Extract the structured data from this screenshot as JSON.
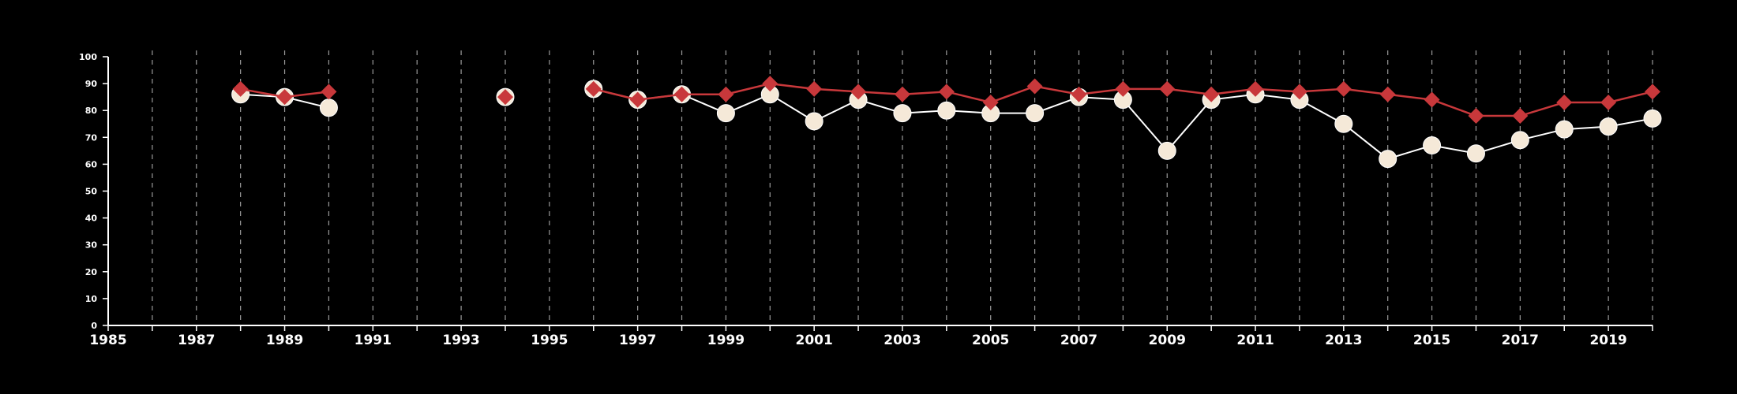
{
  "chart_data": {
    "type": "line",
    "title": "",
    "xlabel": "",
    "ylabel": "",
    "xlim": [
      1985,
      2020
    ],
    "ylim": [
      0,
      100
    ],
    "yticks": [
      0,
      10,
      20,
      30,
      40,
      50,
      60,
      70,
      80,
      90,
      100
    ],
    "xticks_labeled": [
      1985,
      1987,
      1989,
      1991,
      1993,
      1995,
      1997,
      1999,
      2001,
      2003,
      2005,
      2007,
      2009,
      2011,
      2013,
      2015,
      2017,
      2019
    ],
    "grid": "vertical-dashed-every-year",
    "legend": "none",
    "colors": {
      "background": "#000000",
      "series_a_fill": "#f5e9d8",
      "series_a_line": "#ffffff",
      "series_b": "#c8383b"
    },
    "series": [
      {
        "marker": "circle",
        "x": [
          1988,
          1989,
          1990,
          1994,
          1996,
          1997,
          1998,
          1999,
          2000,
          2001,
          2002,
          2003,
          2004,
          2005,
          2006,
          2007,
          2008,
          2009,
          2010,
          2011,
          2012,
          2013,
          2014,
          2015,
          2016,
          2017,
          2018,
          2019,
          2020
        ],
        "values": [
          86,
          85,
          81,
          85,
          88,
          84,
          86,
          79,
          86,
          76,
          84,
          79,
          80,
          79,
          79,
          85,
          84,
          65,
          84,
          86,
          84,
          75,
          62,
          67,
          64,
          69,
          73,
          74,
          77
        ]
      },
      {
        "marker": "diamond",
        "x": [
          1988,
          1989,
          1990,
          1994,
          1996,
          1997,
          1998,
          1999,
          2000,
          2001,
          2002,
          2003,
          2004,
          2005,
          2006,
          2007,
          2008,
          2009,
          2010,
          2011,
          2012,
          2013,
          2014,
          2015,
          2016,
          2017,
          2018,
          2019,
          2020
        ],
        "values": [
          88,
          85,
          87,
          85,
          88,
          84,
          86,
          86,
          90,
          88,
          87,
          86,
          87,
          83,
          89,
          86,
          88,
          88,
          86,
          88,
          87,
          88,
          86,
          84,
          78,
          78,
          83,
          83,
          87
        ]
      }
    ]
  }
}
